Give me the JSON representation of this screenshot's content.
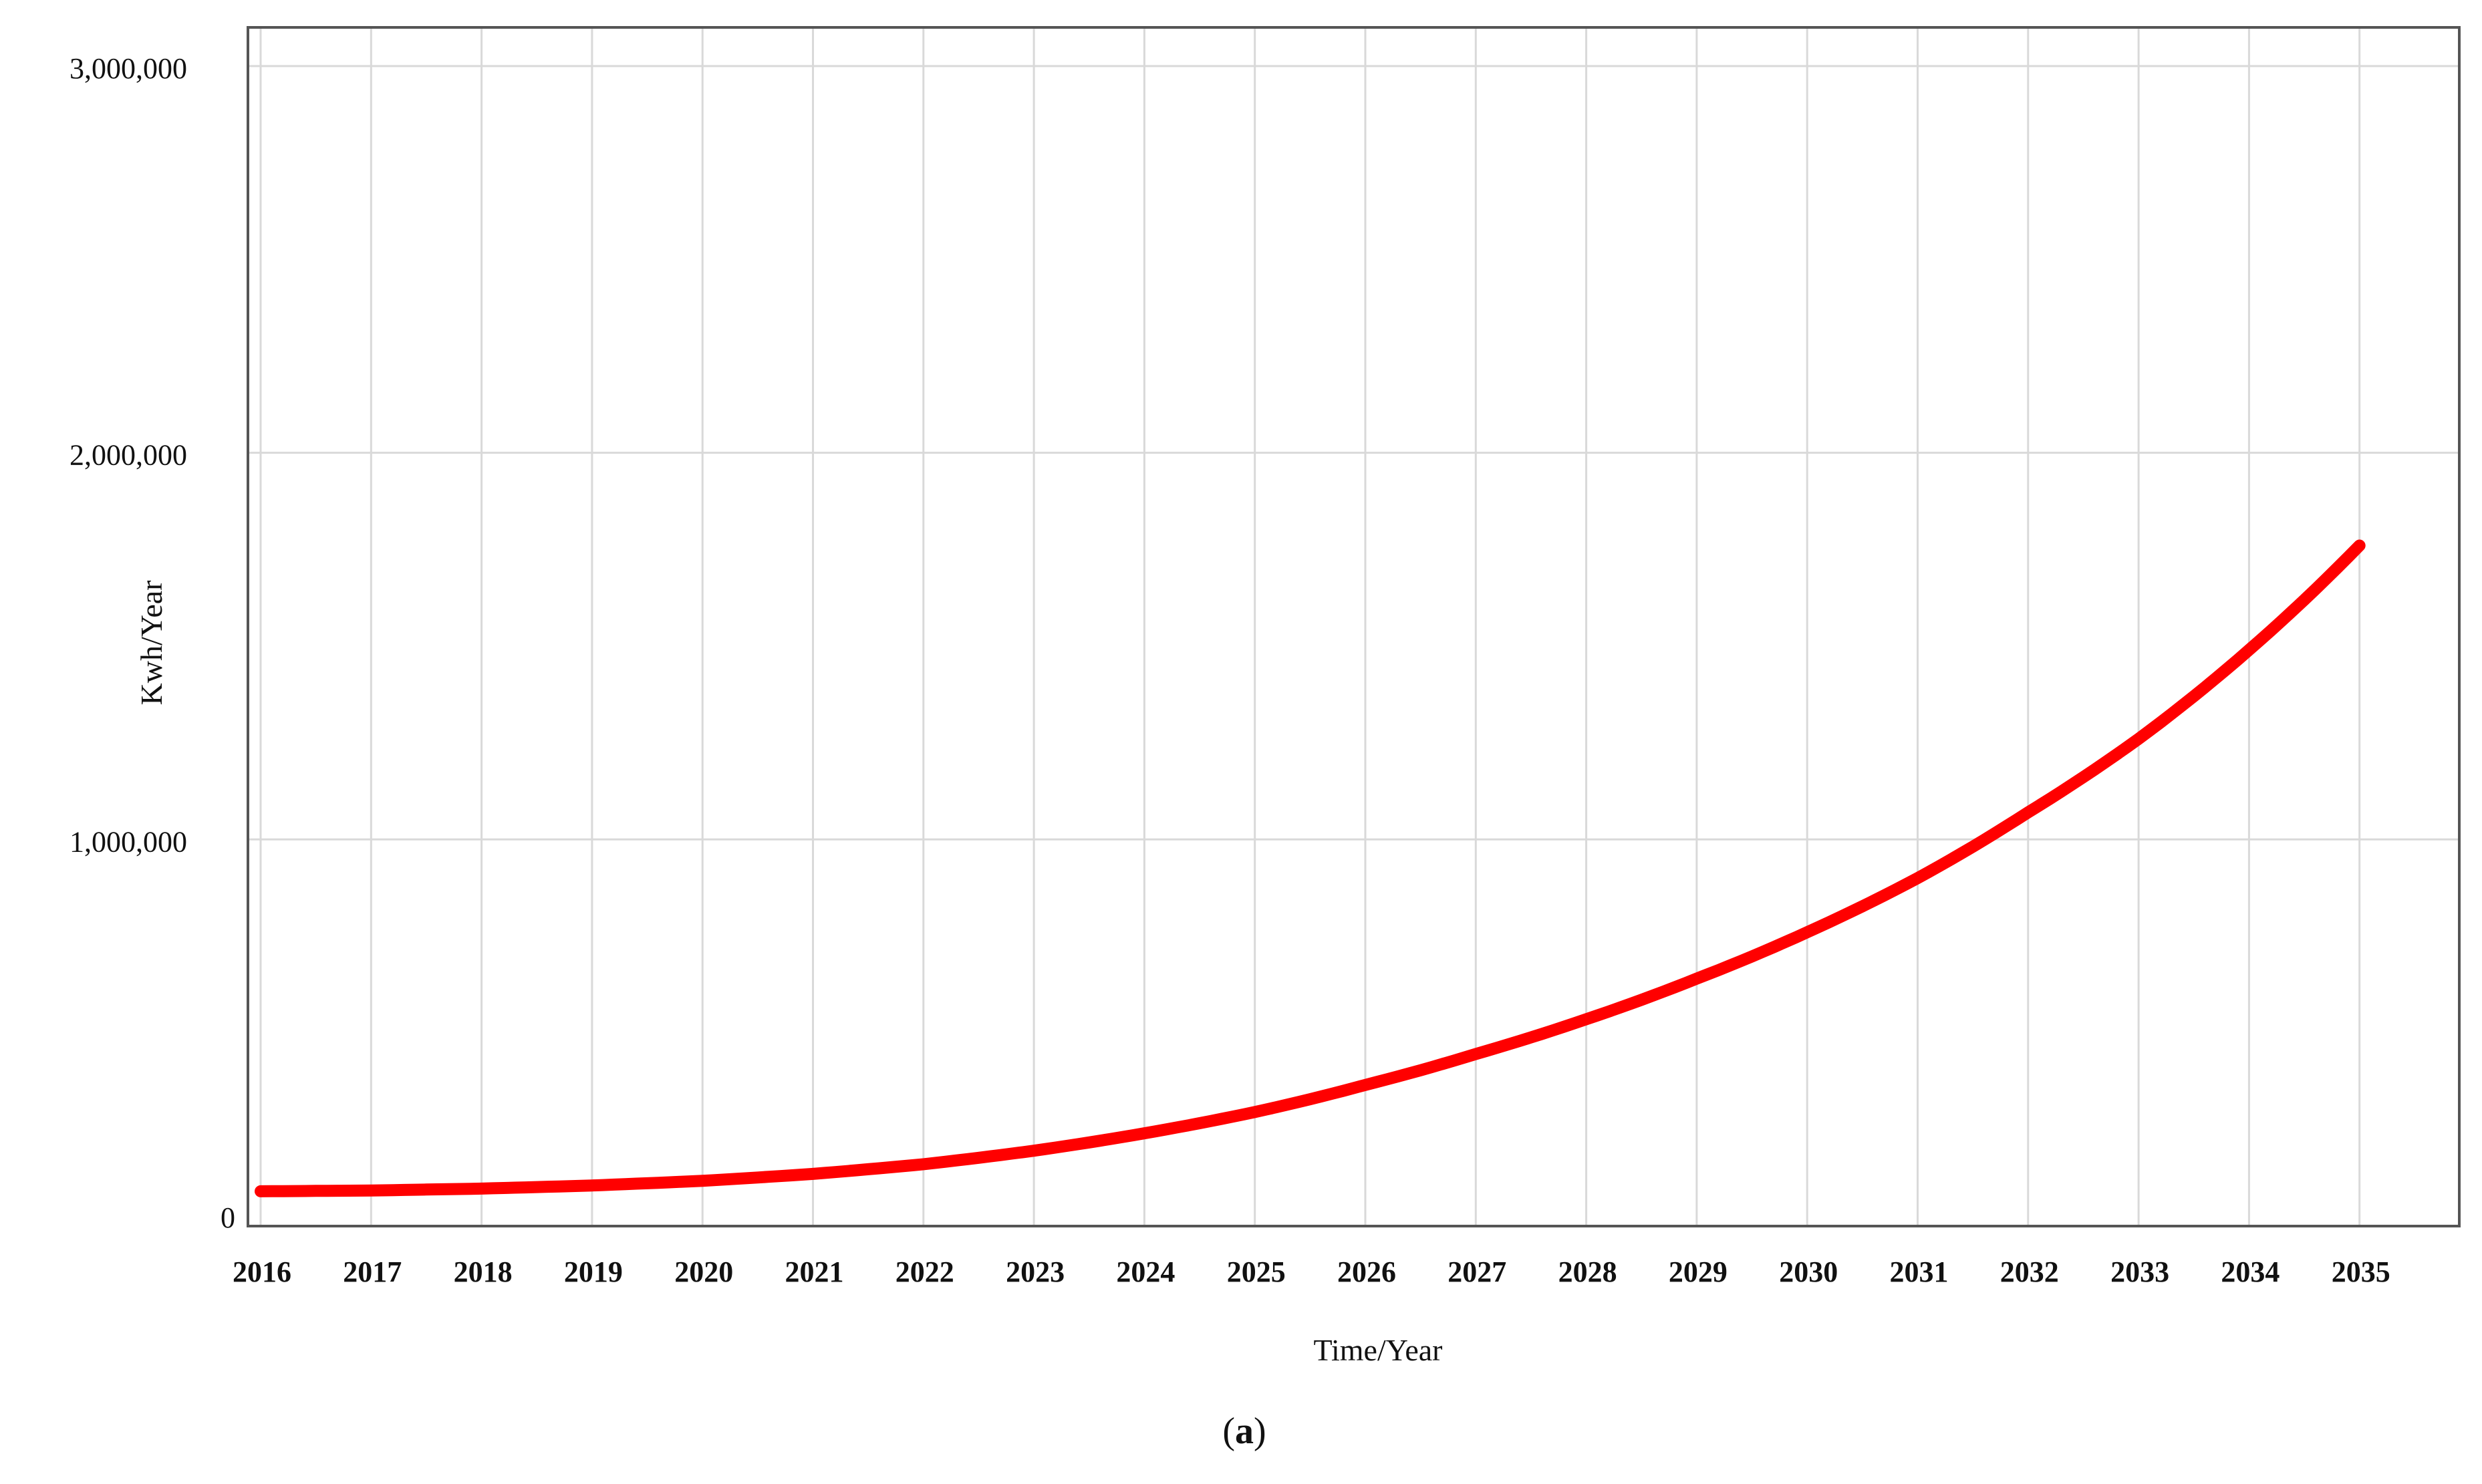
{
  "chart_data": {
    "type": "line",
    "title": "",
    "xlabel": "Time/Year",
    "ylabel": "Kwh/Year",
    "x": [
      2016,
      2017,
      2018,
      2019,
      2020,
      2021,
      2022,
      2023,
      2024,
      2025,
      2026,
      2027,
      2028,
      2029,
      2030,
      2031,
      2032,
      2033,
      2034,
      2035
    ],
    "x_tick_labels": [
      "2016",
      "2017",
      "2018",
      "2019",
      "2020",
      "2021",
      "2022",
      "2023",
      "2024",
      "2025",
      "2026",
      "2027",
      "2028",
      "2029",
      "2030",
      "2031",
      "2032",
      "2033",
      "2034",
      "2035"
    ],
    "y_tick_values": [
      0,
      1000000,
      2000000,
      3000000
    ],
    "y_tick_labels": [
      "0",
      "1,000,000",
      "2,000,000",
      "3,000,000"
    ],
    "xlim": [
      2016,
      2036
    ],
    "ylim": [
      0,
      3100000
    ],
    "grid": true,
    "legend": "none",
    "series": [
      {
        "color": "#ff0000",
        "values": [
          90000,
          92000,
          97000,
          105000,
          117000,
          135000,
          160000,
          195000,
          240000,
          295000,
          365000,
          445000,
          535000,
          640000,
          760000,
          900000,
          1070000,
          1260000,
          1490000,
          1760000
        ]
      }
    ]
  },
  "caption": {
    "open": "(",
    "letter": "a",
    "close": ")"
  }
}
